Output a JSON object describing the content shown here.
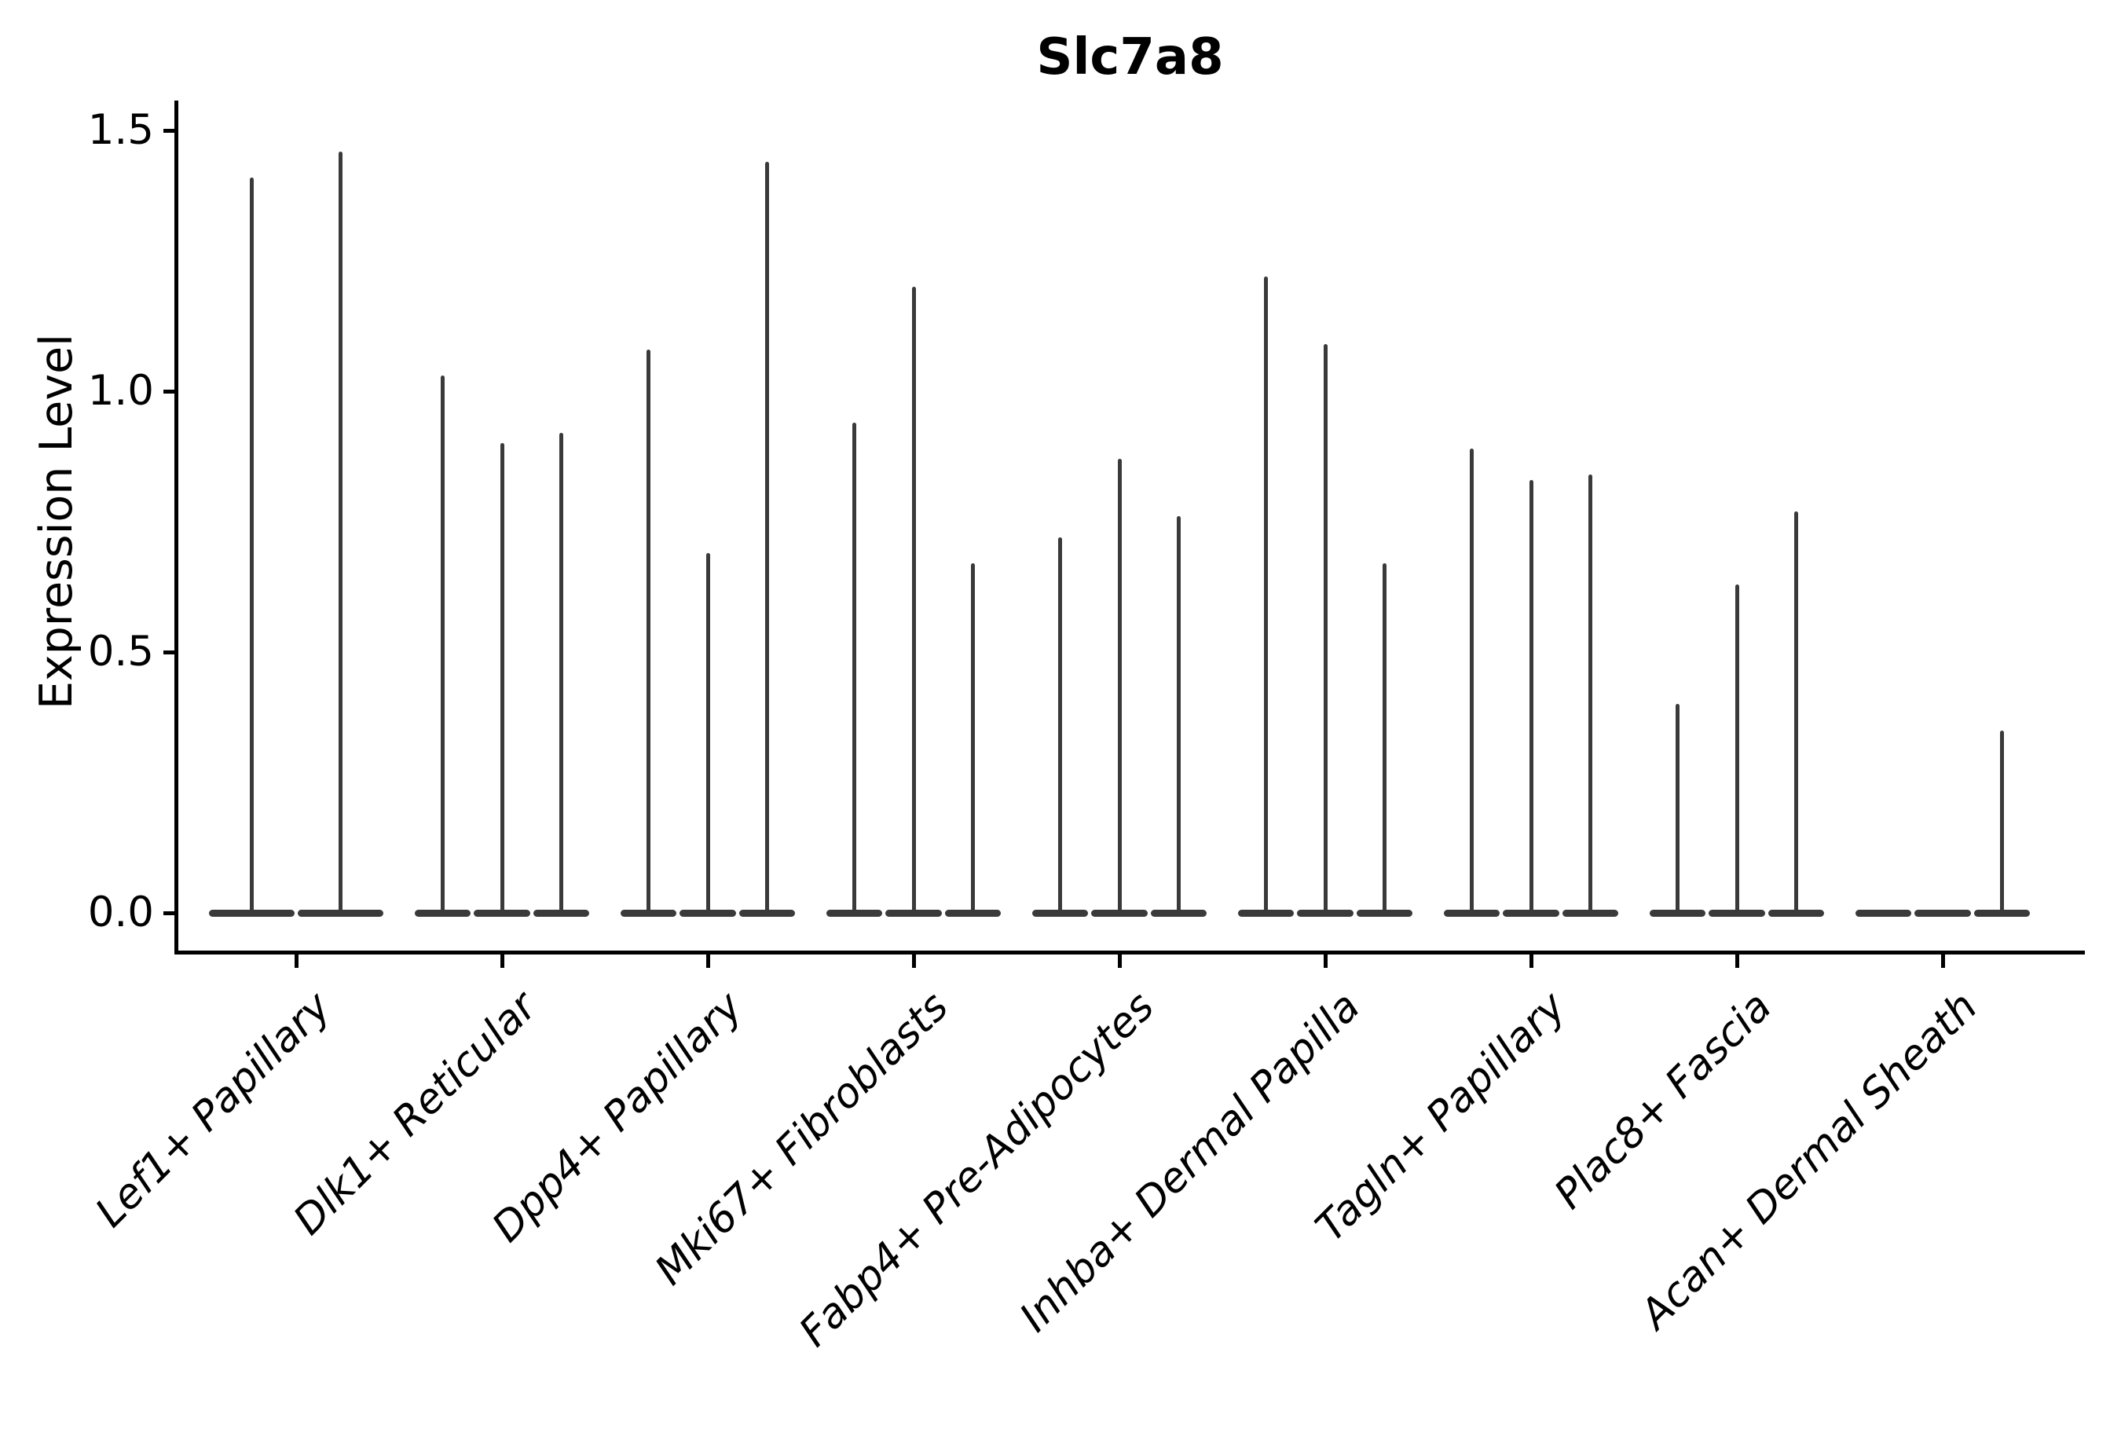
{
  "figure": {
    "background_color": "#ffffff",
    "ink_color": "#3a3a3a",
    "text_color": "#000000"
  },
  "chart_data": {
    "type": "violin",
    "title": "Slc7a8",
    "xlabel": "",
    "ylabel": "Expression Level",
    "ylim": [
      -0.07,
      1.56
    ],
    "yticks": [
      0.0,
      0.5,
      1.0,
      1.5
    ],
    "ytick_labels": [
      "0.0",
      "0.5",
      "1.0",
      "1.5"
    ],
    "grid": false,
    "legend": null,
    "categories": [
      "Lef1+ Papillary",
      "Dlk1+ Reticular",
      "Dpp4+ Papillary",
      "Mki67+ Fibroblasts",
      "Fabp4+ Pre-Adipocytes",
      "Inhba+ Dermal Papilla",
      "Tagln+ Papillary",
      "Plac8+ Fascia",
      "Acan+ Dermal Sheath"
    ],
    "series": [
      {
        "category": "Lef1+ Papillary",
        "violin_maxima": [
          1.41,
          1.46
        ]
      },
      {
        "category": "Dlk1+ Reticular",
        "violin_maxima": [
          1.03,
          0.9,
          0.92
        ]
      },
      {
        "category": "Dpp4+ Papillary",
        "violin_maxima": [
          1.08,
          0.69,
          1.44
        ]
      },
      {
        "category": "Mki67+ Fibroblasts",
        "violin_maxima": [
          0.94,
          1.2,
          0.67
        ]
      },
      {
        "category": "Fabp4+ Pre-Adipocytes",
        "violin_maxima": [
          0.72,
          0.87,
          0.76
        ]
      },
      {
        "category": "Inhba+ Dermal Papilla",
        "violin_maxima": [
          1.22,
          1.09,
          0.67
        ]
      },
      {
        "category": "Tagln+ Papillary",
        "violin_maxima": [
          0.89,
          0.83,
          0.84
        ]
      },
      {
        "category": "Plac8+ Fascia",
        "violin_maxima": [
          0.4,
          0.63,
          0.77
        ]
      },
      {
        "category": "Acan+ Dermal Sheath",
        "violin_maxima": [
          0.0,
          0.0,
          0.35
        ]
      }
    ]
  }
}
